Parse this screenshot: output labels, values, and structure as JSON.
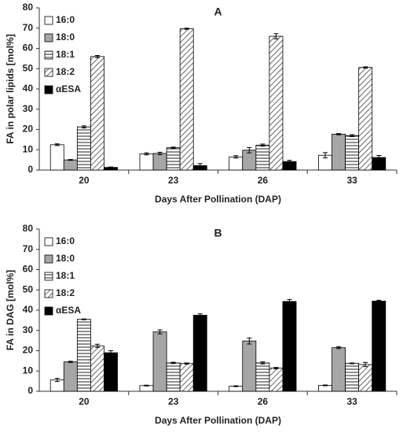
{
  "chart_data": [
    {
      "type": "bar",
      "title": "A",
      "y_label": "FA in polar lipids [mol%]",
      "x_label": "Days After Pollination (DAP)",
      "categories": [
        "20",
        "23",
        "26",
        "33"
      ],
      "ylim": [
        0,
        80
      ],
      "yticks": [
        0,
        10,
        20,
        30,
        40,
        50,
        60,
        70,
        80
      ],
      "series": [
        {
          "name": "16:0",
          "color": "#ffffff",
          "pattern": null,
          "values": [
            12.5,
            8,
            6.5,
            7.3
          ],
          "errors": [
            0.4,
            0.5,
            0.6,
            1.3
          ]
        },
        {
          "name": "18:0",
          "color": "#a6a6a6",
          "pattern": null,
          "values": [
            5,
            8.2,
            9.8,
            17.7
          ],
          "errors": [
            0.2,
            0.6,
            1.3,
            0.3
          ]
        },
        {
          "name": "18:1",
          "color": "#ffffff",
          "pattern": "horizontal",
          "values": [
            21.3,
            11,
            12.3,
            17
          ],
          "errors": [
            0.5,
            0.3,
            0.5,
            0.5
          ]
        },
        {
          "name": "18:2",
          "color": "#ffffff",
          "pattern": "diagonal",
          "values": [
            56,
            69.7,
            66,
            50.6
          ],
          "errors": [
            0.5,
            0.3,
            1.3,
            0.3
          ]
        },
        {
          "name": "αESA",
          "color": "#000000",
          "pattern": null,
          "values": [
            1.3,
            2.2,
            4.2,
            6.2
          ],
          "errors": [
            0.2,
            1,
            0.6,
            1
          ]
        }
      ]
    },
    {
      "type": "bar",
      "title": "B",
      "y_label": "FA in DAG [mol%]",
      "x_label": "Days After Pollination (DAP)",
      "categories": [
        "20",
        "23",
        "26",
        "33"
      ],
      "ylim": [
        0,
        80
      ],
      "yticks": [
        0,
        10,
        20,
        30,
        40,
        50,
        60,
        70,
        80
      ],
      "series": [
        {
          "name": "16:0",
          "color": "#ffffff",
          "pattern": null,
          "values": [
            5.6,
            2.8,
            2.5,
            2.9
          ],
          "errors": [
            0.8,
            0.2,
            0.2,
            0.2
          ]
        },
        {
          "name": "18:0",
          "color": "#a6a6a6",
          "pattern": null,
          "values": [
            14.5,
            29.3,
            24.8,
            21.5
          ],
          "errors": [
            0.3,
            1,
            1.5,
            0.5
          ]
        },
        {
          "name": "18:1",
          "color": "#ffffff",
          "pattern": "horizontal",
          "values": [
            35.5,
            14,
            14,
            13.8
          ],
          "errors": [
            0.2,
            0.3,
            0.5,
            0.2
          ]
        },
        {
          "name": "18:2",
          "color": "#ffffff",
          "pattern": "diagonal",
          "values": [
            22.4,
            13.7,
            11.4,
            13.2
          ],
          "errors": [
            0.8,
            0.3,
            0.4,
            1
          ]
        },
        {
          "name": "αESA",
          "color": "#000000",
          "pattern": null,
          "values": [
            19,
            37.5,
            44.3,
            44.5
          ],
          "errors": [
            1,
            0.7,
            1,
            0.4
          ]
        }
      ]
    }
  ]
}
